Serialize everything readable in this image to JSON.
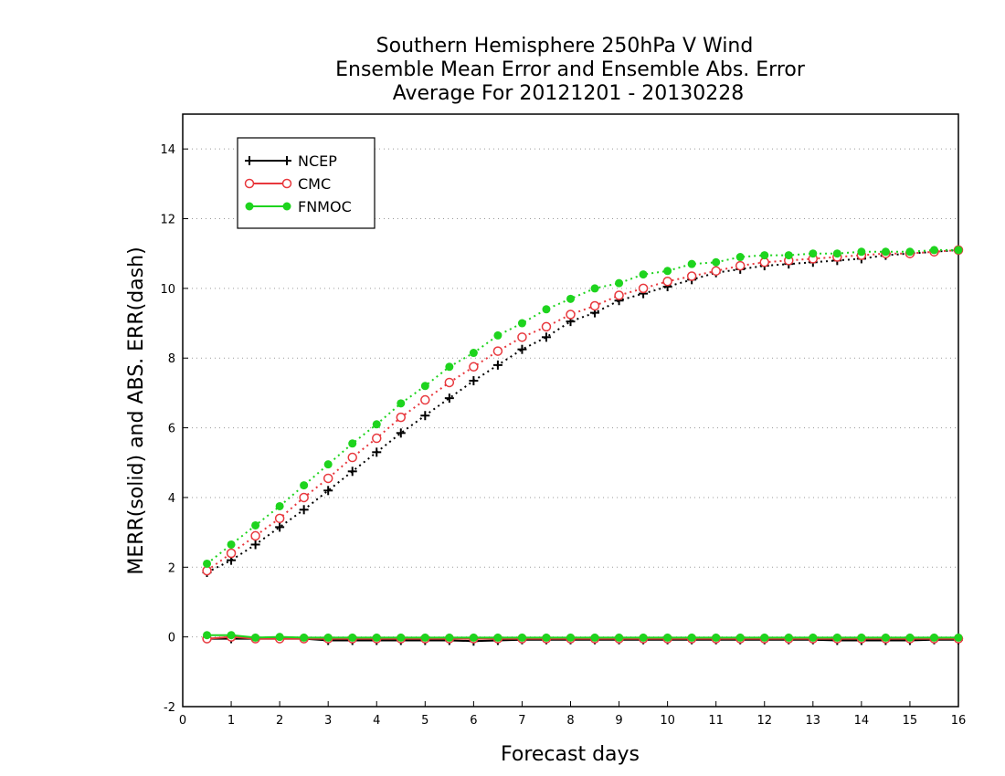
{
  "chart_data": {
    "type": "line",
    "title": [
      "Southern Hemisphere 250hPa V Wind",
      "Ensemble Mean Error and Ensemble Abs. Error",
      "Average For 20121201 - 20130228"
    ],
    "xlabel": "Forecast days",
    "ylabel": "MERR(solid) and ABS. ERR(dash)",
    "xlim": [
      0,
      16
    ],
    "ylim": [
      -2,
      15
    ],
    "xticks": [
      0,
      1,
      2,
      3,
      4,
      5,
      6,
      7,
      8,
      9,
      10,
      11,
      12,
      13,
      14,
      15,
      16
    ],
    "yticks": [
      -2,
      0,
      2,
      4,
      6,
      8,
      10,
      12,
      14
    ],
    "grid": "horizontal-dotted",
    "legend_position": "top-left",
    "x": [
      0.5,
      1,
      1.5,
      2,
      2.5,
      3,
      3.5,
      4,
      4.5,
      5,
      5.5,
      6,
      6.5,
      7,
      7.5,
      8,
      8.5,
      9,
      9.5,
      10,
      10.5,
      11,
      11.5,
      12,
      12.5,
      13,
      13.5,
      14,
      14.5,
      15,
      15.5,
      16
    ],
    "series": [
      {
        "name": "NCEP",
        "color": "#000000",
        "marker": "plus",
        "abs_err": [
          1.85,
          2.2,
          2.65,
          3.15,
          3.65,
          4.2,
          4.75,
          5.3,
          5.85,
          6.35,
          6.85,
          7.35,
          7.8,
          8.25,
          8.6,
          9.05,
          9.3,
          9.65,
          9.85,
          10.05,
          10.25,
          10.45,
          10.55,
          10.65,
          10.7,
          10.75,
          10.8,
          10.85,
          10.95,
          11.0,
          11.05,
          11.1
        ],
        "mean_err": [
          -0.05,
          -0.05,
          -0.05,
          -0.05,
          -0.05,
          -0.1,
          -0.1,
          -0.1,
          -0.1,
          -0.1,
          -0.1,
          -0.12,
          -0.1,
          -0.08,
          -0.08,
          -0.08,
          -0.08,
          -0.08,
          -0.08,
          -0.08,
          -0.08,
          -0.08,
          -0.08,
          -0.08,
          -0.08,
          -0.08,
          -0.1,
          -0.1,
          -0.1,
          -0.1,
          -0.08,
          -0.08
        ]
      },
      {
        "name": "CMC",
        "color": "#e8383d",
        "marker": "circle-open",
        "abs_err": [
          1.9,
          2.4,
          2.9,
          3.4,
          4.0,
          4.55,
          5.15,
          5.7,
          6.3,
          6.8,
          7.3,
          7.75,
          8.2,
          8.6,
          8.9,
          9.25,
          9.5,
          9.8,
          10.0,
          10.2,
          10.35,
          10.5,
          10.65,
          10.75,
          10.8,
          10.85,
          10.9,
          10.95,
          11.0,
          11.0,
          11.05,
          11.1
        ],
        "mean_err": [
          -0.05,
          0.0,
          -0.05,
          -0.05,
          -0.05,
          -0.05,
          -0.05,
          -0.05,
          -0.05,
          -0.05,
          -0.05,
          -0.05,
          -0.05,
          -0.05,
          -0.05,
          -0.05,
          -0.05,
          -0.05,
          -0.05,
          -0.05,
          -0.05,
          -0.05,
          -0.05,
          -0.05,
          -0.05,
          -0.05,
          -0.05,
          -0.05,
          -0.05,
          -0.05,
          -0.05,
          -0.05
        ]
      },
      {
        "name": "FNMOC",
        "color": "#1ed41e",
        "marker": "circle-filled",
        "abs_err": [
          2.1,
          2.65,
          3.2,
          3.75,
          4.35,
          4.95,
          5.55,
          6.1,
          6.7,
          7.2,
          7.75,
          8.15,
          8.65,
          9.0,
          9.4,
          9.7,
          10.0,
          10.15,
          10.4,
          10.5,
          10.7,
          10.75,
          10.9,
          10.95,
          10.95,
          11.0,
          11.0,
          11.05,
          11.05,
          11.05,
          11.1,
          11.1
        ],
        "mean_err": [
          0.05,
          0.05,
          -0.02,
          0.0,
          -0.02,
          -0.02,
          -0.02,
          -0.02,
          -0.02,
          -0.02,
          -0.02,
          -0.02,
          -0.02,
          -0.02,
          -0.02,
          -0.02,
          -0.02,
          -0.02,
          -0.02,
          -0.02,
          -0.02,
          -0.02,
          -0.02,
          -0.02,
          -0.02,
          -0.02,
          -0.02,
          -0.02,
          -0.02,
          -0.02,
          -0.02,
          -0.02
        ]
      }
    ]
  }
}
